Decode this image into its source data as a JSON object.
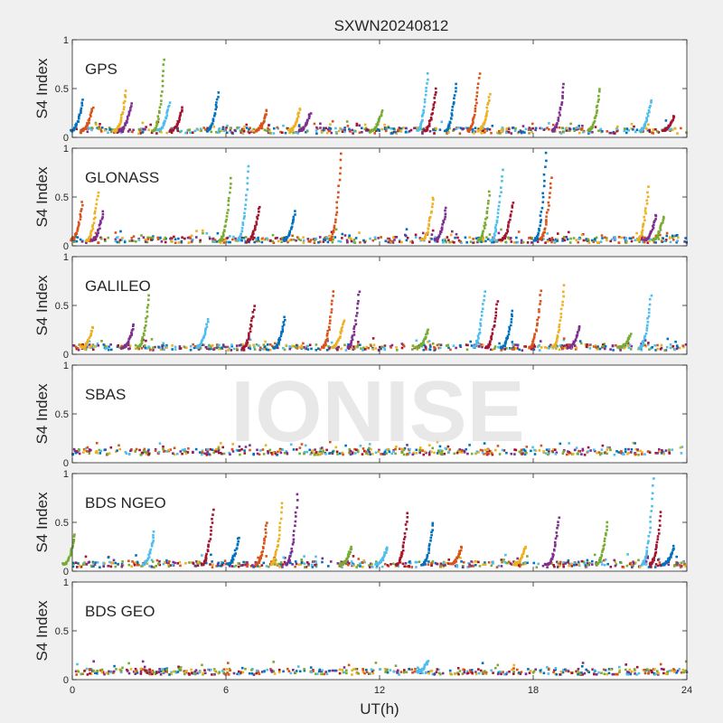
{
  "title": "SXWN20240812",
  "watermark": "IONISE",
  "xlabel": "UT(h)",
  "ylabel": "S4 Index",
  "colors": [
    "#0072bd",
    "#d95319",
    "#edb120",
    "#7e2f8e",
    "#77ac30",
    "#4dbeee",
    "#a2142f"
  ],
  "chart_data": {
    "type": "scatter",
    "xlim": [
      0,
      24
    ],
    "ylim": [
      0,
      1
    ],
    "x_ticks": [
      0,
      6,
      12,
      18,
      24
    ],
    "y_ticks": [
      0,
      0.5,
      1
    ],
    "x_tick_labels": [
      "0",
      "6",
      "12",
      "18",
      "24"
    ],
    "y_tick_labels": [
      "0",
      "0.5",
      "1"
    ],
    "grid": false,
    "panels": [
      {
        "label": "GPS",
        "baseline": 0.07,
        "spikes": [
          [
            0.4,
            0.38
          ],
          [
            0.8,
            0.3
          ],
          [
            2.1,
            0.47
          ],
          [
            2.3,
            0.35
          ],
          [
            3.6,
            0.8
          ],
          [
            3.8,
            0.35
          ],
          [
            4.3,
            0.3
          ],
          [
            5.7,
            0.45
          ],
          [
            7.6,
            0.28
          ],
          [
            8.9,
            0.3
          ],
          [
            9.3,
            0.25
          ],
          [
            12.1,
            0.27
          ],
          [
            13.9,
            0.65
          ],
          [
            14.2,
            0.5
          ],
          [
            15.0,
            0.55
          ],
          [
            15.9,
            0.65
          ],
          [
            16.3,
            0.45
          ],
          [
            19.2,
            0.55
          ],
          [
            20.6,
            0.5
          ],
          [
            22.6,
            0.38
          ],
          [
            23.5,
            0.22
          ]
        ]
      },
      {
        "label": "GLONASS",
        "baseline": 0.06,
        "spikes": [
          [
            0.4,
            0.45
          ],
          [
            1.0,
            0.55
          ],
          [
            1.2,
            0.35
          ],
          [
            6.2,
            0.7
          ],
          [
            6.9,
            0.82
          ],
          [
            7.3,
            0.4
          ],
          [
            8.7,
            0.35
          ],
          [
            10.5,
            0.95
          ],
          [
            14.1,
            0.5
          ],
          [
            14.6,
            0.38
          ],
          [
            16.3,
            0.55
          ],
          [
            16.8,
            0.78
          ],
          [
            17.2,
            0.45
          ],
          [
            18.5,
            0.95
          ],
          [
            18.7,
            0.7
          ],
          [
            22.5,
            0.6
          ],
          [
            22.8,
            0.32
          ],
          [
            23.1,
            0.3
          ]
        ]
      },
      {
        "label": "GALILEO",
        "baseline": 0.07,
        "spikes": [
          [
            0.8,
            0.28
          ],
          [
            2.4,
            0.3
          ],
          [
            3.0,
            0.6
          ],
          [
            5.3,
            0.35
          ],
          [
            7.1,
            0.5
          ],
          [
            8.3,
            0.38
          ],
          [
            10.2,
            0.65
          ],
          [
            10.6,
            0.35
          ],
          [
            11.2,
            0.65
          ],
          [
            13.9,
            0.25
          ],
          [
            16.1,
            0.65
          ],
          [
            16.6,
            0.55
          ],
          [
            17.2,
            0.45
          ],
          [
            18.3,
            0.65
          ],
          [
            19.2,
            0.7
          ],
          [
            19.8,
            0.28
          ],
          [
            21.8,
            0.2
          ],
          [
            22.6,
            0.6
          ]
        ]
      },
      {
        "label": "SBAS",
        "baseline": 0.11,
        "spikes": []
      },
      {
        "label": "BDS NGEO",
        "baseline": 0.07,
        "spikes": [
          [
            0.1,
            0.38
          ],
          [
            3.2,
            0.4
          ],
          [
            5.5,
            0.62
          ],
          [
            6.5,
            0.35
          ],
          [
            7.6,
            0.5
          ],
          [
            8.2,
            0.7
          ],
          [
            8.8,
            0.78
          ],
          [
            10.9,
            0.25
          ],
          [
            12.3,
            0.25
          ],
          [
            13.1,
            0.6
          ],
          [
            14.1,
            0.5
          ],
          [
            15.2,
            0.25
          ],
          [
            17.7,
            0.25
          ],
          [
            19.0,
            0.55
          ],
          [
            20.9,
            0.5
          ],
          [
            22.7,
            0.95
          ],
          [
            23.0,
            0.6
          ],
          [
            23.5,
            0.25
          ]
        ]
      },
      {
        "label": "BDS GEO",
        "baseline": 0.08,
        "spikes": [
          [
            13.9,
            0.2
          ]
        ]
      }
    ]
  }
}
